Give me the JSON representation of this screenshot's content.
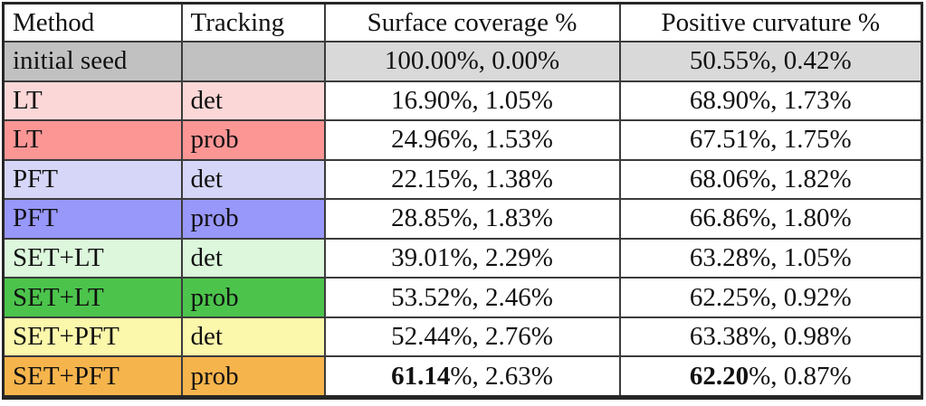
{
  "table": {
    "headers": [
      {
        "label": "Method"
      },
      {
        "label": "Tracking"
      },
      {
        "label": "Surface coverage %"
      },
      {
        "label": "Positive curvature %"
      }
    ],
    "rows": [
      {
        "method": "initial seed",
        "tracking": "",
        "surface_bold": "",
        "surface": "100.00%, 0.00%",
        "curvature_bold": "",
        "curvature": "50.55%, 0.42%",
        "label_bg": "#c1c1c1",
        "value_bg": "#d9d9d9"
      },
      {
        "method": "LT",
        "tracking": "det",
        "surface_bold": "",
        "surface": "16.90%, 1.05%",
        "curvature_bold": "",
        "curvature": "68.90%, 1.73%",
        "label_bg": "#fcd7d7",
        "value_bg": "#ffffff"
      },
      {
        "method": "LT",
        "tracking": "prob",
        "surface_bold": "",
        "surface": "24.96%, 1.53%",
        "curvature_bold": "",
        "curvature": "67.51%, 1.75%",
        "label_bg": "#fb9695",
        "value_bg": "#ffffff"
      },
      {
        "method": "PFT",
        "tracking": "det",
        "surface_bold": "",
        "surface": "22.15%, 1.38%",
        "curvature_bold": "",
        "curvature": "68.06%, 1.82%",
        "label_bg": "#d6d6f8",
        "value_bg": "#ffffff"
      },
      {
        "method": "PFT",
        "tracking": "prob",
        "surface_bold": "",
        "surface": "28.85%, 1.83%",
        "curvature_bold": "",
        "curvature": "66.86%, 1.80%",
        "label_bg": "#9897fa",
        "value_bg": "#ffffff"
      },
      {
        "method": "SET+LT",
        "tracking": "det",
        "surface_bold": "",
        "surface": "39.01%, 2.29%",
        "curvature_bold": "",
        "curvature": "63.28%, 1.05%",
        "label_bg": "#dcf7dc",
        "value_bg": "#ffffff"
      },
      {
        "method": "SET+LT",
        "tracking": "prob",
        "surface_bold": "",
        "surface": "53.52%, 2.46%",
        "curvature_bold": "",
        "curvature": "62.25%, 0.92%",
        "label_bg": "#4cc44c",
        "value_bg": "#ffffff"
      },
      {
        "method": "SET+PFT",
        "tracking": "det",
        "surface_bold": "",
        "surface": "52.44%, 2.76%",
        "curvature_bold": "",
        "curvature": "63.38%, 0.98%",
        "label_bg": "#fbf7ab",
        "value_bg": "#ffffff"
      },
      {
        "method": "SET+PFT",
        "tracking": "prob",
        "surface_bold": "61.14",
        "surface": "%, 2.63%",
        "curvature_bold": "62.20",
        "curvature": "%, 0.87%",
        "label_bg": "#f6b44c",
        "value_bg": "#ffffff"
      }
    ],
    "border_color": "#3c3c3c",
    "outer_border_color": "#262626",
    "header_bg": "#ffffff"
  }
}
